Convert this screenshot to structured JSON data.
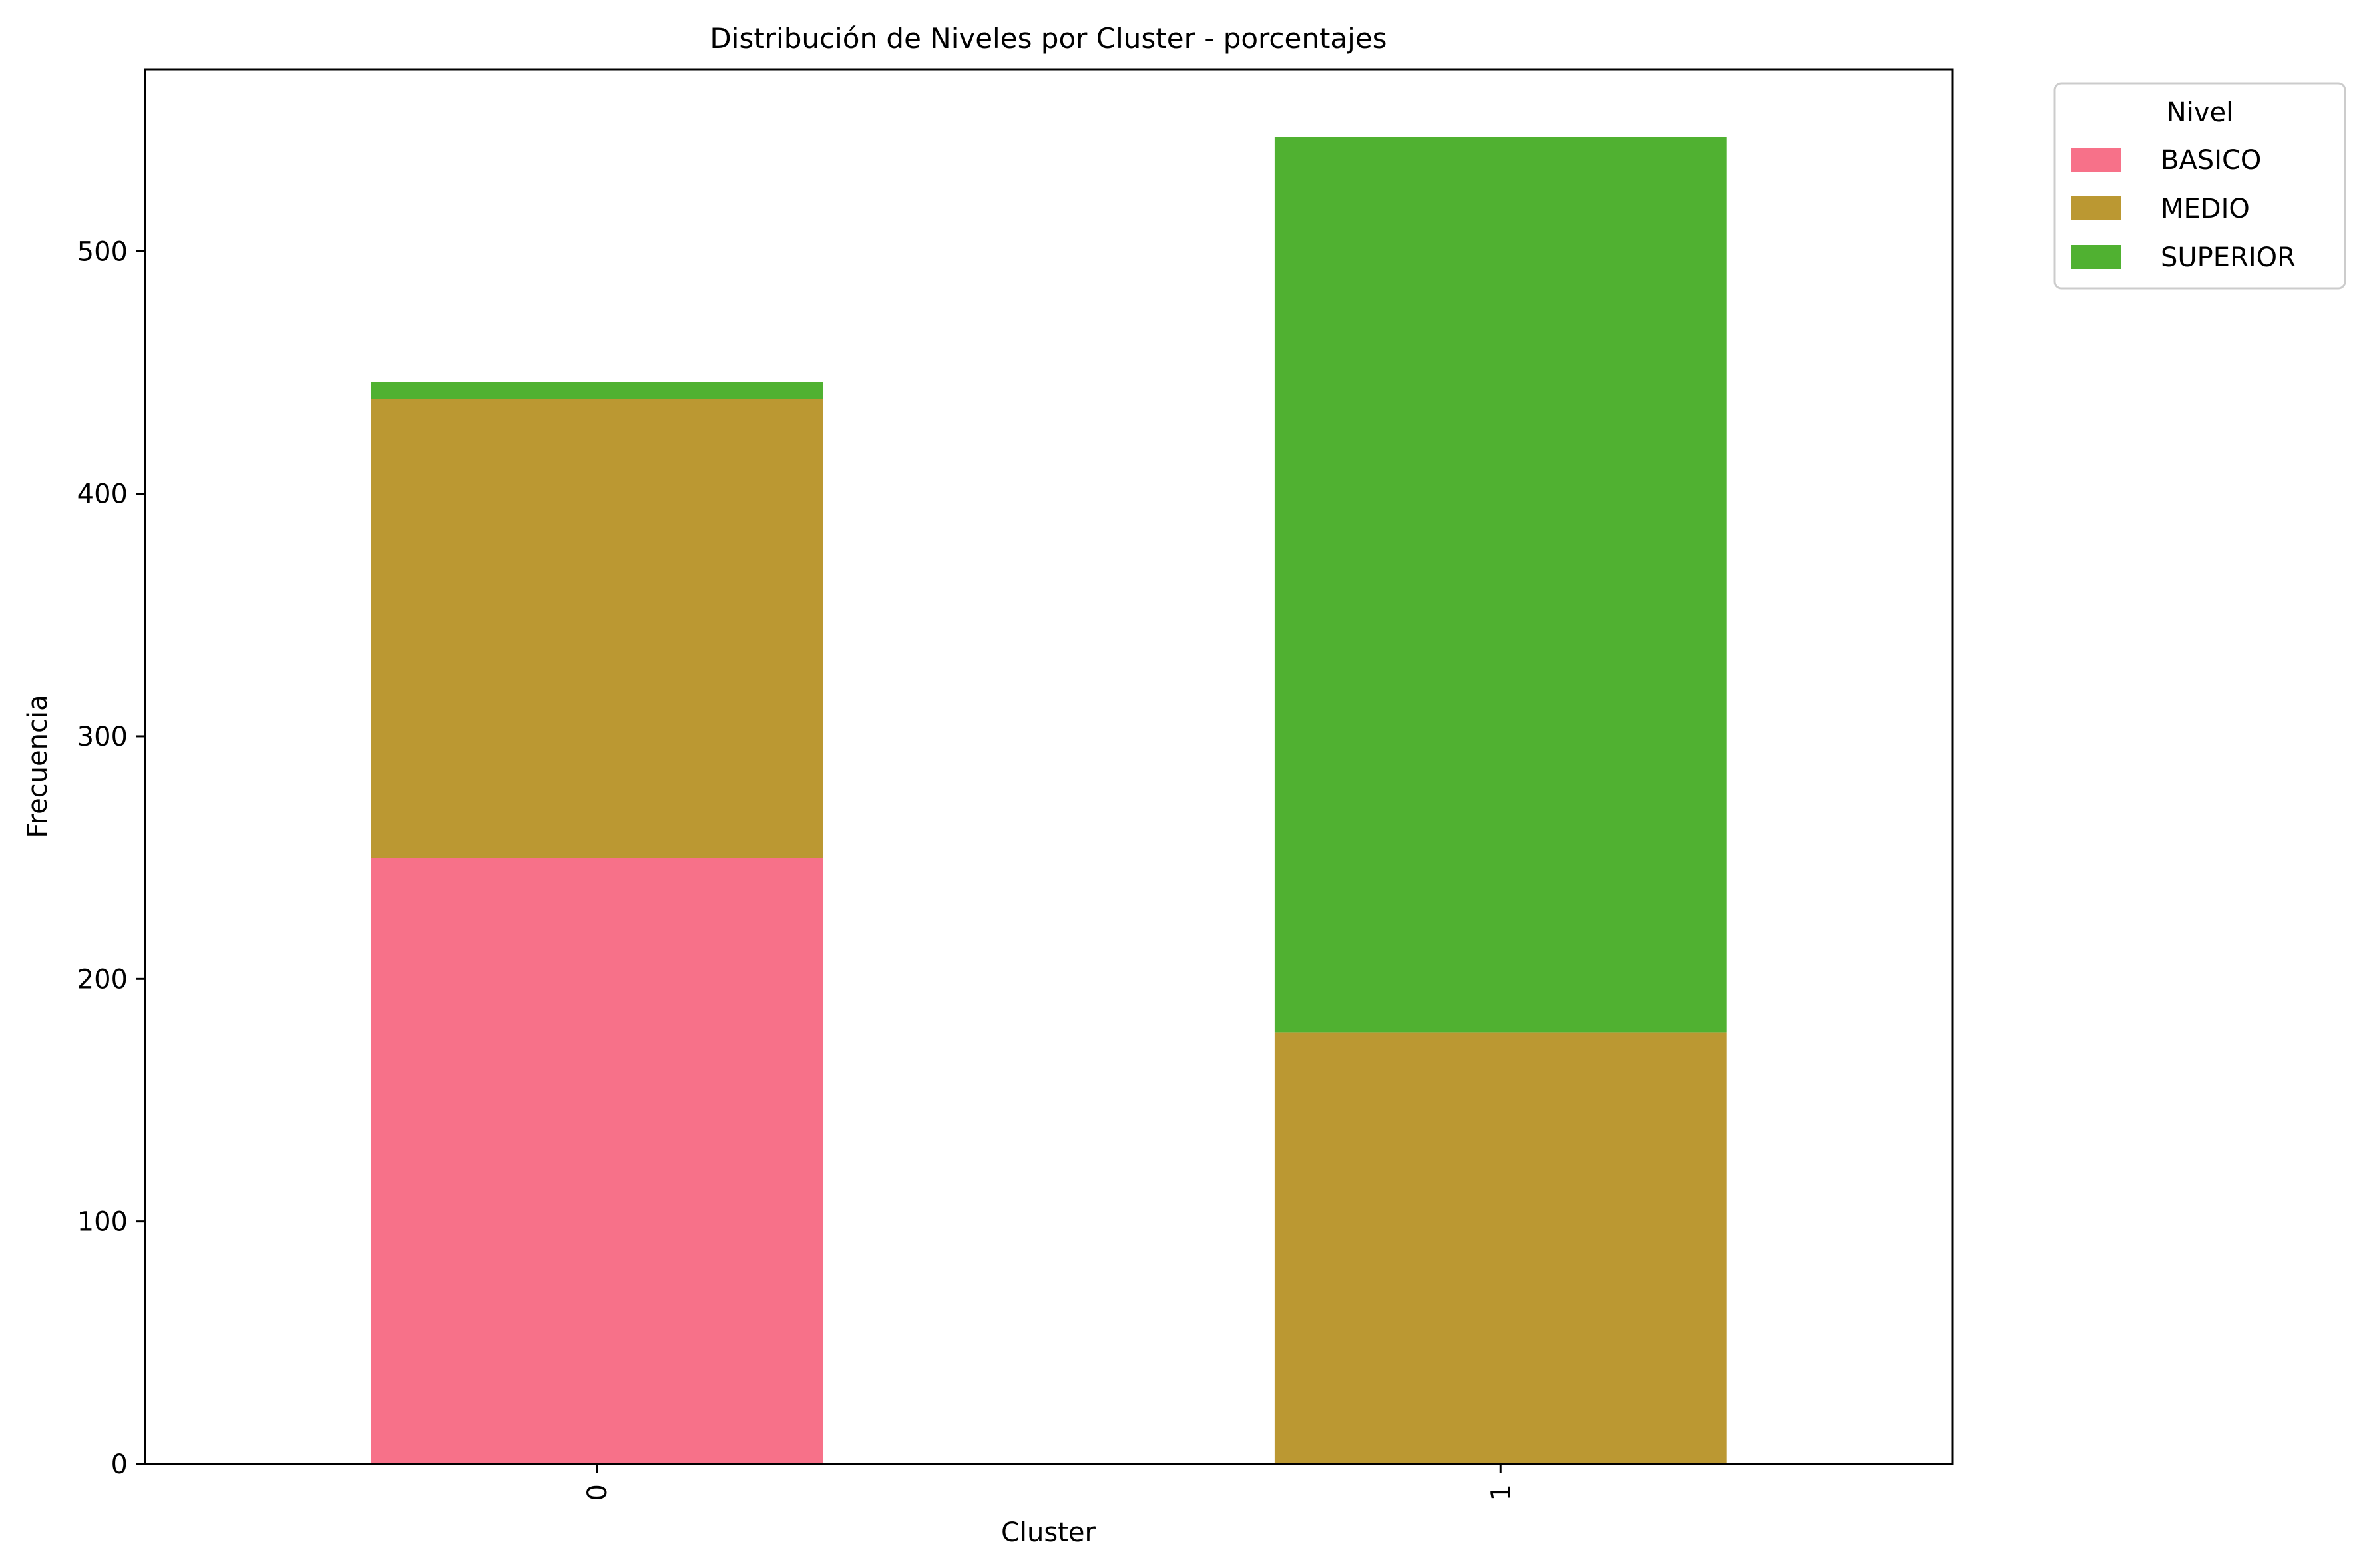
{
  "chart_data": {
    "type": "bar",
    "stacked": true,
    "title": "Distribución de Niveles por Cluster - porcentajes",
    "xlabel": "Cluster",
    "ylabel": "Frecuencia",
    "categories": [
      "0",
      "1"
    ],
    "series": [
      {
        "name": "BASICO",
        "color": "#f77189",
        "values": [
          250,
          0
        ]
      },
      {
        "name": "MEDIO",
        "color": "#bb9832",
        "values": [
          189,
          178
        ]
      },
      {
        "name": "SUPERIOR",
        "color": "#50b131",
        "values": [
          7,
          369
        ]
      }
    ],
    "ylim": [
      0,
      575
    ],
    "yticks": [
      0,
      100,
      200,
      300,
      400,
      500
    ],
    "grid": false,
    "legend": {
      "title": "Nivel",
      "placement": "outside-top-right",
      "items": [
        "BASICO",
        "MEDIO",
        "SUPERIOR"
      ]
    }
  }
}
